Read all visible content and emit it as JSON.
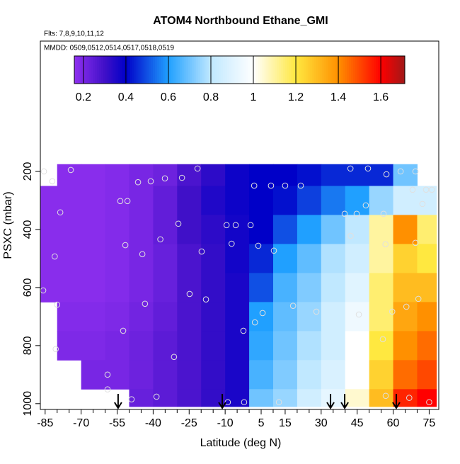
{
  "chart_data": {
    "type": "heatmap",
    "title": "ATOM4 Northbound Ethane_GMI",
    "subtitle": "Flts: 7,8,9,10,11,12",
    "annotation": "MMDD: 0509,0512,0514,0517,0518,0519",
    "xlabel": "Latitude (deg N)",
    "ylabel": "PSXC (mbar)",
    "xlim": [
      -87,
      79
    ],
    "ylim": [
      1020,
      -249
    ],
    "xticks": [
      -85,
      -70,
      -55,
      -40,
      -25,
      -10,
      5,
      15,
      30,
      45,
      60,
      75
    ],
    "xminor": [
      -80,
      -75,
      -65,
      -60,
      -50,
      -45,
      -35,
      -30,
      -20,
      -15,
      -5,
      0,
      10,
      20,
      25,
      35,
      40,
      50,
      55,
      65,
      70
    ],
    "yticks": [
      200,
      400,
      600,
      800,
      1000
    ],
    "x_edges": [
      -87,
      -80,
      -70,
      -60,
      -50,
      -40,
      -30,
      -20,
      -10,
      0,
      10,
      20,
      30,
      40,
      50,
      60,
      70,
      78
    ],
    "y_edges": [
      175,
      250,
      350,
      450,
      550,
      650,
      750,
      850,
      950,
      1010
    ],
    "z": [
      [
        null,
        0.17,
        0.17,
        0.18,
        0.2,
        0.22,
        0.28,
        0.33,
        0.38,
        0.4,
        0.4,
        0.42,
        0.45,
        0.45,
        0.45,
        0.7,
        null
      ],
      [
        0.17,
        0.17,
        0.17,
        0.18,
        0.2,
        0.24,
        0.3,
        0.35,
        0.38,
        0.4,
        0.42,
        0.48,
        0.55,
        0.6,
        0.75,
        0.85,
        0.85
      ],
      [
        0.17,
        0.17,
        0.17,
        0.18,
        0.2,
        0.24,
        0.3,
        0.33,
        0.37,
        0.4,
        0.5,
        0.6,
        0.7,
        0.8,
        1.1,
        1.4,
        1.15
      ],
      [
        0.17,
        0.17,
        0.17,
        0.18,
        0.2,
        0.23,
        0.28,
        0.32,
        0.37,
        0.45,
        0.6,
        0.68,
        0.78,
        0.85,
        1.1,
        1.25,
        1.2
      ],
      [
        0.17,
        0.17,
        0.17,
        0.18,
        0.2,
        0.23,
        0.28,
        0.32,
        0.36,
        0.5,
        0.65,
        0.72,
        0.8,
        0.9,
        1.15,
        1.3,
        1.3
      ],
      [
        null,
        0.18,
        0.18,
        0.19,
        0.21,
        0.24,
        0.28,
        0.32,
        0.36,
        0.6,
        0.68,
        0.75,
        0.85,
        0.95,
        1.15,
        1.35,
        1.4
      ],
      [
        null,
        0.19,
        0.19,
        0.2,
        0.22,
        0.25,
        0.28,
        0.32,
        0.36,
        0.62,
        0.7,
        0.78,
        0.85,
        1.0,
        1.2,
        1.4,
        1.45
      ],
      [
        null,
        null,
        0.2,
        0.2,
        0.22,
        0.25,
        0.28,
        0.32,
        0.36,
        0.65,
        0.72,
        0.8,
        0.88,
        1.0,
        1.25,
        1.45,
        1.5
      ],
      [
        null,
        null,
        null,
        null,
        0.23,
        0.25,
        0.28,
        0.32,
        0.36,
        0.7,
        0.75,
        0.85,
        0.92,
        1.05,
        1.3,
        1.55,
        1.6
      ]
    ],
    "colorbar": {
      "lim": [
        0.157,
        1.713
      ],
      "ticks": [
        0.2,
        0.4,
        0.6,
        0.8,
        1.0,
        1.2,
        1.4,
        1.6
      ],
      "stop_values": [
        0.157,
        0.3,
        0.4,
        0.6,
        0.8,
        1.0,
        1.2,
        1.4,
        1.6,
        1.713
      ],
      "stop_colors": [
        "#9030f0",
        "#4010c8",
        "#0000c8",
        "#20a0ff",
        "#c0e8ff",
        "#ffffff",
        "#ffe840",
        "#ff9000",
        "#ff0000",
        "#a01818"
      ]
    },
    "points": {
      "color": "#e0e0e0",
      "x": [
        -85.5,
        -82,
        -78.7,
        -81,
        -85.8,
        -80,
        -80.6,
        -74.3,
        -53.7,
        -50.7,
        -51.6,
        -44.5,
        -46.3,
        -41,
        -35.1,
        -28,
        -21.5,
        -37,
        -29.5,
        -24.8,
        -18,
        -19.8,
        -43.4,
        -52.5,
        -31.3,
        -59,
        -59,
        -38.6,
        -49,
        -9.4,
        -5.6,
        -7.3,
        0.6,
        2.1,
        9.1,
        15,
        21.5,
        3.8,
        10.3,
        -2.4,
        2.4,
        5.6,
        18.3,
        28,
        -8.9,
        -2.1,
        12.4,
        42.2,
        49.5,
        57.2,
        63.1,
        69.3,
        68.1,
        73.7,
        76.1,
        48.6,
        39.8,
        44.8,
        56,
        72.2,
        42.3,
        56.8,
        69.3,
        59.6,
        55.7,
        65.5,
        70.5,
        45.7,
        66.7,
        75,
        56.9
      ],
      "y": [
        200,
        234,
        341,
        493,
        610,
        659,
        812,
        195,
        302,
        302,
        454,
        485,
        237,
        234,
        224,
        222,
        190,
        434,
        380,
        622,
        641,
        476,
        656,
        749,
        839,
        900,
        951,
        976,
        985,
        385,
        385,
        449,
        385,
        249,
        249,
        249,
        249,
        456,
        473,
        749,
        720,
        688,
        663,
        683,
        995,
        995,
        995,
        190,
        190,
        210,
        200,
        200,
        263,
        263,
        263,
        317,
        346,
        346,
        346,
        312,
        422,
        451,
        446,
        683,
        778,
        666,
        639,
        693,
        980,
        995,
        973
      ]
    },
    "arrows_x": [
      -54.6,
      -11.2,
      33.9,
      39.8,
      61.3
    ]
  }
}
